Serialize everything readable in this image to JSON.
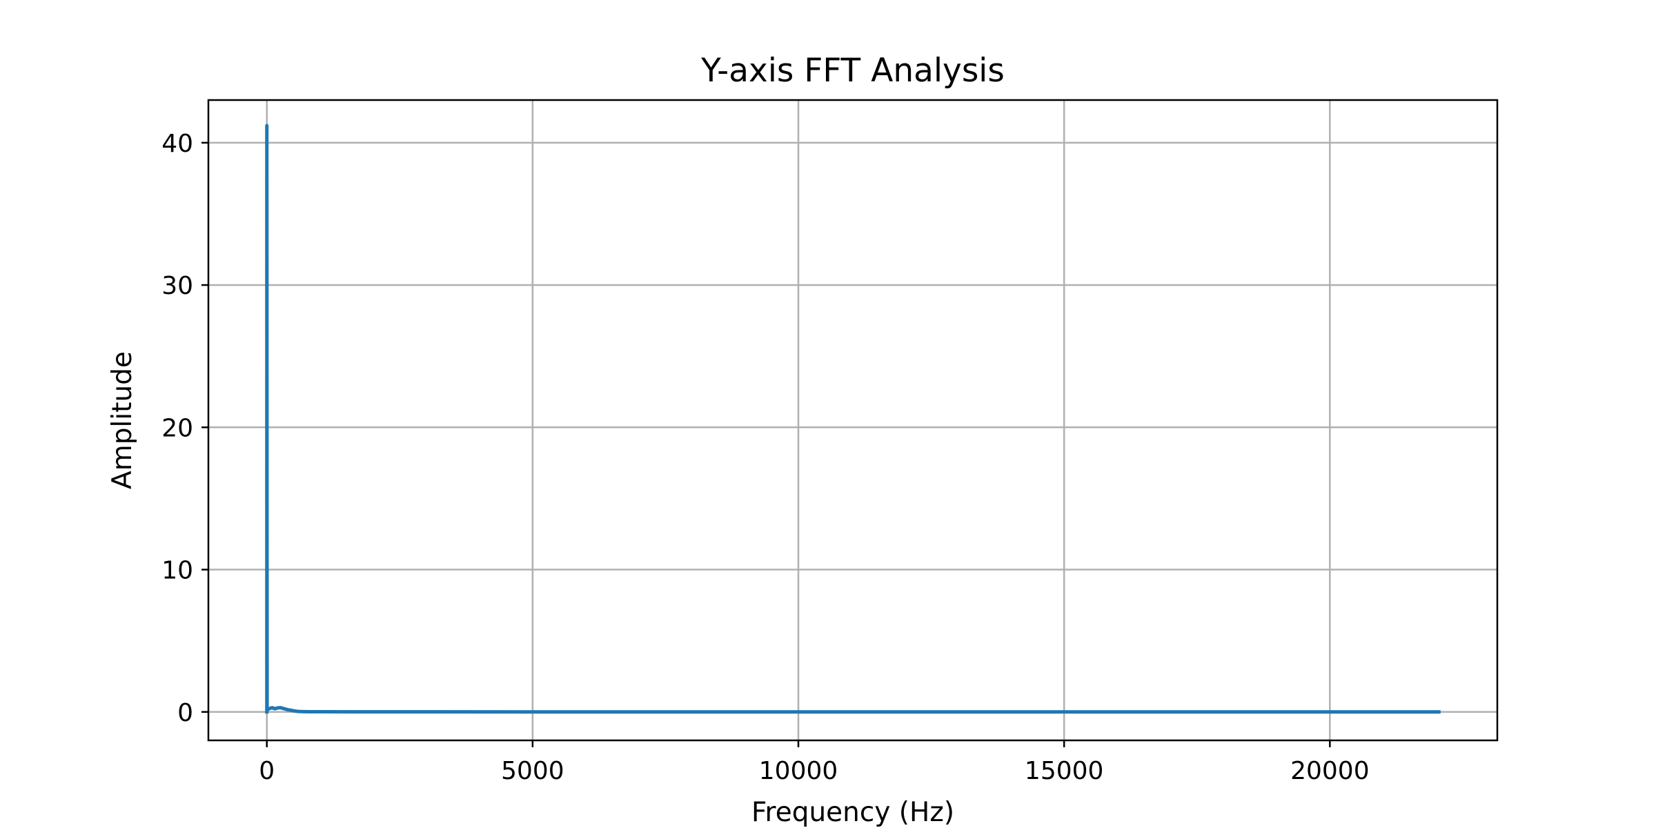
{
  "chart_data": {
    "type": "line",
    "title": "Y-axis FFT Analysis",
    "xlabel": "Frequency (Hz)",
    "ylabel": "Amplitude",
    "xlim": [
      -1100,
      23150
    ],
    "ylim": [
      -2.0,
      43.0
    ],
    "xticks": [
      0,
      5000,
      10000,
      15000,
      20000
    ],
    "xtick_labels": [
      "0",
      "5000",
      "10000",
      "15000",
      "20000"
    ],
    "yticks": [
      0,
      10,
      20,
      30,
      40
    ],
    "ytick_labels": [
      "0",
      "10",
      "20",
      "30",
      "40"
    ],
    "grid": true,
    "line_color": "#1f77b4",
    "grid_color": "#b0b0b0",
    "series": [
      {
        "x": [
          0,
          0,
          5,
          10,
          30,
          60,
          100,
          150,
          200,
          250,
          300,
          350,
          400,
          450,
          500,
          550,
          600,
          700,
          800,
          1000,
          2000,
          5000,
          10000,
          15000,
          20000,
          22050
        ],
        "y": [
          0,
          41.2,
          0.3,
          0.15,
          0.2,
          0.25,
          0.3,
          0.22,
          0.28,
          0.3,
          0.25,
          0.2,
          0.15,
          0.12,
          0.08,
          0.05,
          0.03,
          0.02,
          0.01,
          0.01,
          0.005,
          0.003,
          0.002,
          0.002,
          0.001,
          0.001
        ]
      }
    ]
  }
}
